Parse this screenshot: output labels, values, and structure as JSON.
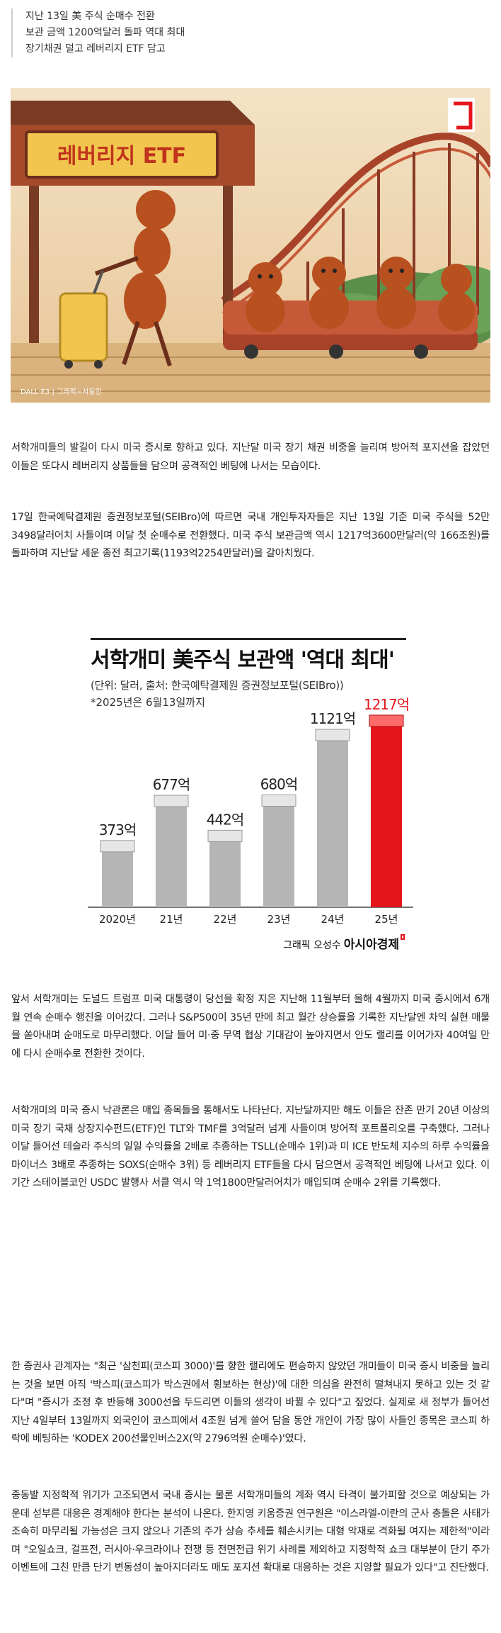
{
  "summary": [
    "지난 13일 美 주식 순매수 전환",
    "보관 금액 1200억달러 돌파 역대 최대",
    "장기채권 덜고 레버리지 ETF 담고"
  ],
  "hero": {
    "sign": "레버리지 ETF",
    "caption": "DALL·E3 | 그래픽=서동민",
    "accent": "#e4161c"
  },
  "paragraphs": [
    "서학개미들의 발길이 다시 미국 증시로 향하고 있다. 지난달 미국 장기 채권 비중을 늘리며 방어적 포지션을 잡았던 이들은 또다시 레버리지 상품들을 담으며 공격적인 베팅에 나서는 모습이다.",
    "17일 한국예탁결제원 증권정보포털(SEIBro)에 따르면 국내 개인투자자들은 지난 13일 기준 미국 주식을 52만3498달러어치 사들이며 이달 첫 순매수로 전환했다. 미국 주식 보관금액 역시 1217억3600만달러(약 166조원)를 돌파하며 지난달 세운 종전 최고기록(1193억2254만달러)을 갈아치웠다.",
    "앞서 서학개미는 도널드 트럼프 미국 대통령이 당선을 확정 지은 지난해 11월부터 올해 4월까지 미국 증시에서 6개월 연속 순매수 행진을 이어갔다. 그러나 S&P500이 35년 만에 최고 월간 상승률을 기록한 지난달엔 차익 실현 매물을 쏟아내며 순매도로 마무리했다. 이달 들어 미·중 무역 협상 기대감이 높아지면서 안도 랠리를 이어가자 40여일 만에 다시 순매수로 전환한 것이다.",
    "서학개미의 미국 증시 낙관론은 매입 종목들을 통해서도 나타난다. 지난달까지만 해도 이들은 잔존 만기 20년 이상의 미국 장기 국채 상장지수펀드(ETF)인 TLT와 TMF를 3억달러 넘게 사들이며 방어적 포트폴리오를 구축했다. 그러나 이달 들어선 테슬라 주식의 일일 수익률을 2배로 추종하는 TSLL(순매수 1위)과 미 ICE 반도체 지수의 하루 수익률을 마이너스 3배로 추종하는 SOXS(순매수 3위) 등 레버리지 ETF들을 다시 담으면서 공격적인 베팅에 나서고 있다. 이 기간 스테이블코인 USDC 발행사 서클 역시 약 1억1800만달러어치가 매입되며 순매수 2위를 기록했다.",
    "한 증권사 관계자는 \"최근 '삼천피(코스피 3000)'를 향한 랠리에도 편승하지 않았던 개미들이 미국 증시 비중을 늘리는 것을 보면 아직 '박스피(코스피가 박스권에서 횡보하는 현상)'에 대한 의심을 완전히 떨쳐내지 못하고 있는 것 같다\"며 \"증시가 조정 후 반등해 3000선을 두드리면 이들의 생각이 바뀔 수 있다\"고 짚었다. 실제로 새 정부가 들어선 지난 4일부터 13일까지 외국인이 코스피에서 4조원 넘게 쓸어 담을 동안 개인이 가장 많이 사들인 종목은 코스피 하락에 베팅하는 'KODEX 200선물인버스2X(약 2796억원 순매수)'였다.",
    "중동발 지정학적 위기가 고조되면서 국내 증시는 물론 서학개미들의 계좌 역시 타격이 불가피할 것으로 예상되는 가운데 섣부른 대응은 경계해야 한다는 분석이 나온다. 한지영 키움증권 연구원은 \"이스라엘-이란의 군사 충돌은 사태가 조속히 마무리될 가능성은 크지 않으나 기존의 주가 상승 추세를 훼손시키는 대형 악재로 격화될 여지는 제한적\"이라며 \"오일쇼크, 걸프전, 러시아·우크라이나 전쟁 등 전면전급 위기 사례를 제외하고 지정학적 쇼크 대부분이 단기 주가 이벤트에 그친 만큼 단기 변동성이 높아지더라도 매도 포지션 확대로 대응하는 것은 지양할 필요가 있다\"고 진단했다."
  ],
  "chart": {
    "title": "서학개미 美주식 보관액 '역대 최대'",
    "subtitle": "(단위: 달러, 출처: 한국예탁결제원 증권정보포털(SEIBro))",
    "note": "*2025년은 6월13일까지",
    "credit_prefix": "그래픽 오성수",
    "credit_brand": "아시아경제",
    "highlight_color": "#e4161c",
    "bar_color": "#b5b5b5"
  },
  "chart_data": {
    "type": "bar",
    "categories": [
      "2020년",
      "21년",
      "22년",
      "23년",
      "24년",
      "25년"
    ],
    "values": [
      373,
      677,
      442,
      680,
      1121,
      1217
    ],
    "labels": [
      "373억",
      "677억",
      "442억",
      "680억",
      "1121억",
      "1217억"
    ],
    "title": "서학개미 美주식 보관액 '역대 최대'",
    "xlabel": "",
    "ylabel": "",
    "ylim": [
      0,
      1250
    ],
    "highlight_index": 5
  }
}
